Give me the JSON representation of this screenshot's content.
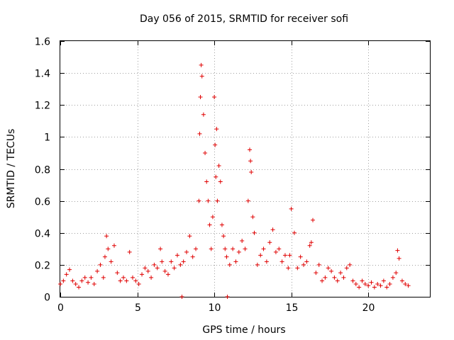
{
  "chart_data": {
    "type": "scatter",
    "title": "Day 056 of 2015, SRMTID for receiver sofi",
    "xlabel": "GPS time / hours",
    "ylabel": "SRMTID / TECUs",
    "xlim": [
      0,
      24
    ],
    "ylim": [
      0,
      1.6
    ],
    "x_ticks": [
      0,
      5,
      10,
      15,
      20
    ],
    "y_ticks": [
      0,
      0.2,
      0.4,
      0.6,
      0.8,
      1,
      1.2,
      1.4,
      1.6
    ],
    "x_tick_labels": [
      "0",
      "5",
      "10",
      "15",
      "20"
    ],
    "y_tick_labels": [
      "0",
      "0.2",
      "0.4",
      "0.6",
      "0.8",
      "1",
      "1.2",
      "1.4",
      "1.6"
    ],
    "grid": true,
    "marker": "plus",
    "series": [
      {
        "name": "SRMTID",
        "color": "#e00000",
        "x": [
          0.0,
          0.2,
          0.4,
          0.6,
          0.8,
          1.0,
          1.2,
          1.4,
          1.6,
          1.8,
          2.0,
          2.2,
          2.4,
          2.6,
          2.8,
          2.9,
          3.0,
          3.1,
          3.3,
          3.5,
          3.7,
          3.9,
          4.1,
          4.3,
          4.5,
          4.7,
          4.9,
          5.1,
          5.3,
          5.5,
          5.7,
          5.9,
          6.1,
          6.3,
          6.5,
          6.6,
          6.8,
          7.0,
          7.2,
          7.4,
          7.6,
          7.8,
          8.0,
          8.2,
          8.4,
          8.6,
          8.8,
          9.0,
          9.05,
          9.1,
          9.15,
          9.2,
          9.3,
          9.4,
          9.5,
          9.6,
          9.7,
          9.8,
          9.9,
          10.0,
          10.05,
          10.1,
          10.15,
          10.2,
          10.3,
          10.4,
          10.5,
          10.6,
          10.7,
          10.8,
          11.0,
          11.2,
          11.4,
          11.6,
          11.8,
          12.0,
          12.2,
          12.3,
          12.35,
          12.4,
          12.5,
          12.6,
          12.8,
          13.0,
          13.2,
          13.4,
          13.6,
          13.8,
          14.0,
          14.2,
          14.4,
          14.6,
          14.8,
          14.9,
          15.0,
          15.2,
          15.4,
          15.6,
          15.8,
          16.0,
          16.2,
          16.3,
          16.4,
          16.6,
          16.8,
          17.0,
          17.2,
          17.4,
          17.6,
          17.8,
          18.0,
          18.2,
          18.4,
          18.6,
          18.8,
          19.0,
          19.2,
          19.4,
          19.6,
          19.8,
          20.0,
          20.2,
          20.4,
          20.6,
          20.8,
          21.0,
          21.2,
          21.4,
          21.6,
          21.8,
          21.9,
          22.0,
          22.2,
          22.4,
          22.6,
          7.9,
          10.85
        ],
        "y": [
          0.08,
          0.1,
          0.14,
          0.17,
          0.1,
          0.08,
          0.06,
          0.1,
          0.12,
          0.09,
          0.12,
          0.08,
          0.16,
          0.2,
          0.12,
          0.25,
          0.38,
          0.3,
          0.22,
          0.32,
          0.15,
          0.1,
          0.12,
          0.1,
          0.28,
          0.12,
          0.1,
          0.08,
          0.14,
          0.18,
          0.16,
          0.12,
          0.2,
          0.18,
          0.3,
          0.22,
          0.16,
          0.14,
          0.22,
          0.18,
          0.26,
          0.2,
          0.22,
          0.28,
          0.38,
          0.25,
          0.3,
          0.6,
          1.02,
          1.25,
          1.45,
          1.38,
          1.14,
          0.9,
          0.72,
          0.6,
          0.45,
          0.3,
          0.5,
          1.25,
          0.95,
          0.75,
          1.05,
          0.6,
          0.82,
          0.72,
          0.45,
          0.38,
          0.3,
          0.25,
          0.2,
          0.3,
          0.22,
          0.28,
          0.35,
          0.3,
          0.6,
          0.92,
          0.85,
          0.78,
          0.5,
          0.4,
          0.2,
          0.26,
          0.3,
          0.22,
          0.34,
          0.42,
          0.28,
          0.3,
          0.22,
          0.26,
          0.18,
          0.26,
          0.55,
          0.4,
          0.18,
          0.25,
          0.2,
          0.22,
          0.32,
          0.34,
          0.48,
          0.15,
          0.2,
          0.1,
          0.12,
          0.18,
          0.16,
          0.12,
          0.1,
          0.15,
          0.12,
          0.18,
          0.2,
          0.1,
          0.08,
          0.06,
          0.1,
          0.08,
          0.07,
          0.09,
          0.06,
          0.08,
          0.07,
          0.1,
          0.06,
          0.08,
          0.12,
          0.15,
          0.29,
          0.24,
          0.1,
          0.08,
          0.07,
          0.0,
          0.0
        ]
      }
    ]
  }
}
